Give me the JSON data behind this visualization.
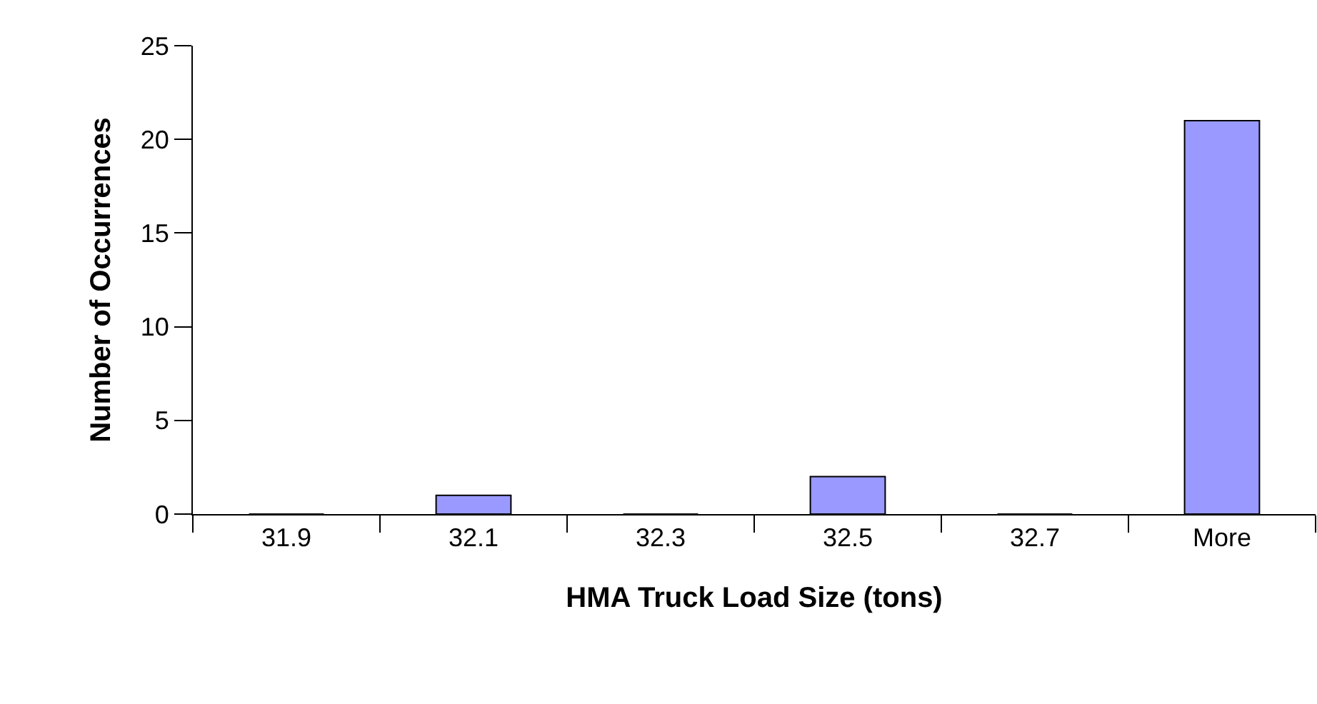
{
  "chart_data": {
    "type": "bar",
    "xlabel": "HMA Truck Load Size (tons)",
    "ylabel": "Number of Occurrences",
    "categories": [
      "31.9",
      "32.1",
      "32.3",
      "32.5",
      "32.7",
      "More"
    ],
    "values": [
      0,
      1,
      0,
      2,
      0,
      21
    ],
    "color": "#9999ff",
    "ylim": [
      0,
      25
    ],
    "yticks": [
      0,
      5,
      10,
      15,
      20,
      25
    ]
  }
}
